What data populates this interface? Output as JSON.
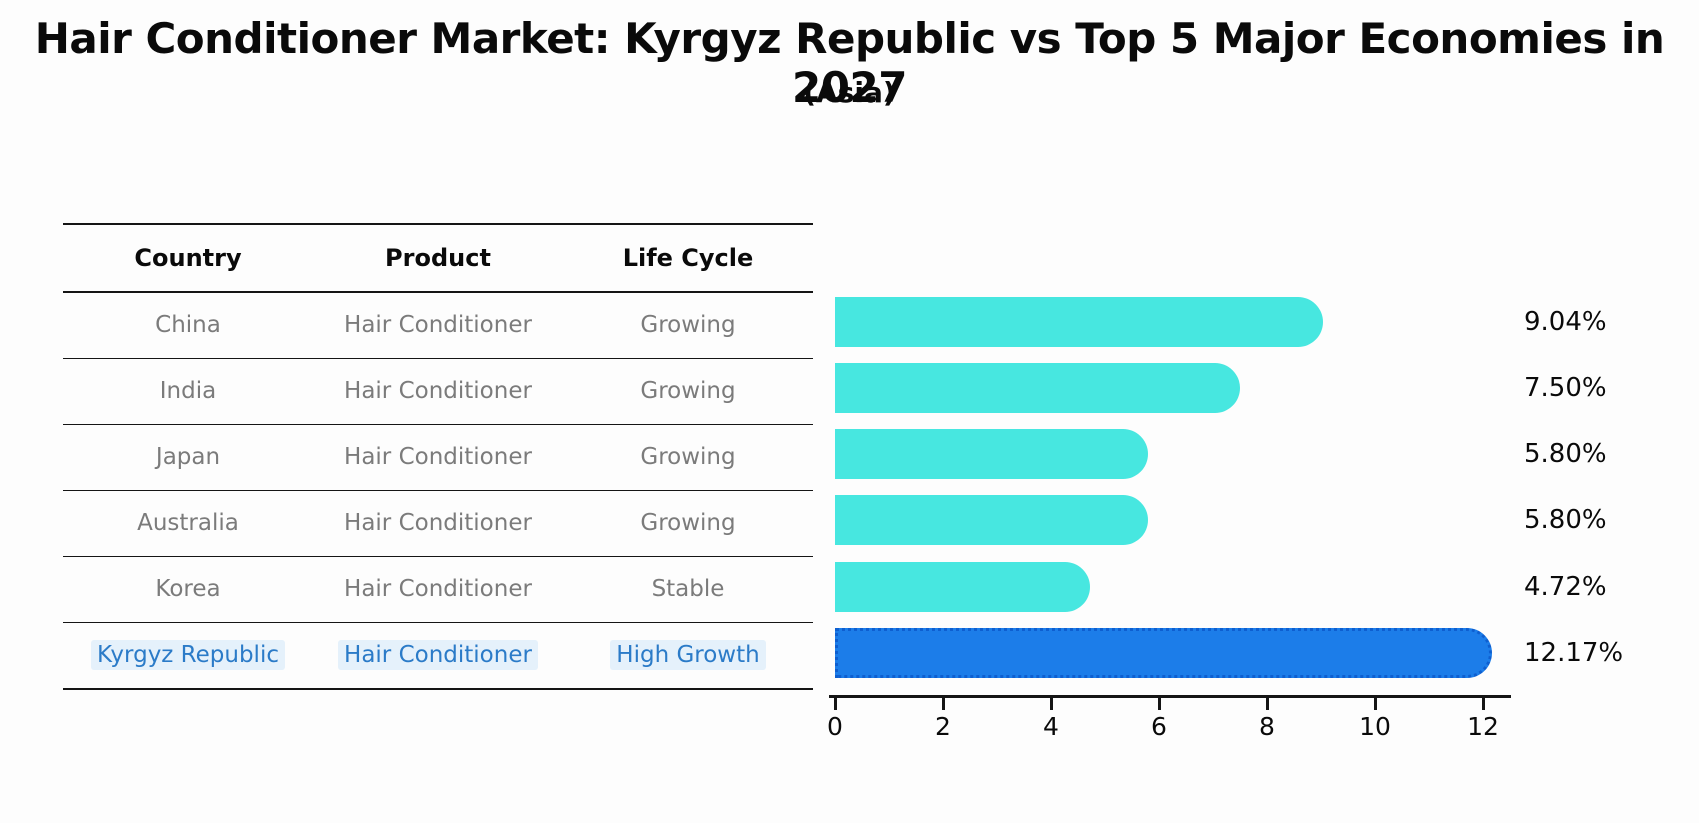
{
  "title": "Hair Conditioner Market: Kyrgyz Republic vs Top 5 Major Economies in 2027",
  "subtitle": "(Asia)",
  "table": {
    "headers": [
      "Country",
      "Product",
      "Life Cycle"
    ],
    "rows": [
      {
        "country": "China",
        "product": "Hair Conditioner",
        "life_cycle": "Growing"
      },
      {
        "country": "India",
        "product": "Hair Conditioner",
        "life_cycle": "Growing"
      },
      {
        "country": "Japan",
        "product": "Hair Conditioner",
        "life_cycle": "Growing"
      },
      {
        "country": "Australia",
        "product": "Hair Conditioner",
        "life_cycle": "Growing"
      },
      {
        "country": "Korea",
        "product": "Hair Conditioner",
        "life_cycle": "Stable"
      },
      {
        "country": "Kyrgyz Republic",
        "product": "Hair Conditioner",
        "life_cycle": "High Growth"
      }
    ],
    "highlight_row_index": 5
  },
  "chart_data": {
    "type": "bar",
    "orientation": "horizontal",
    "title": "Hair Conditioner Market: Kyrgyz Republic vs Top 5 Major Economies in 2027 (Asia)",
    "categories": [
      "China",
      "India",
      "Japan",
      "Australia",
      "Korea",
      "Kyrgyz Republic"
    ],
    "values": [
      9.04,
      7.5,
      5.8,
      5.8,
      4.72,
      12.17
    ],
    "value_labels": [
      "9.04%",
      "7.50%",
      "5.80%",
      "5.80%",
      "4.72%",
      "12.17%"
    ],
    "unit": "%",
    "x_ticks": [
      0,
      2,
      4,
      6,
      8,
      10,
      12
    ],
    "xlim": [
      0,
      12.6
    ],
    "grid": "off",
    "legend": "none",
    "bar_color": "#47e7e0",
    "highlight_color": "#1c7de9",
    "highlight_border_color": "#0e5fd0",
    "highlight_index": 5
  },
  "colors": {
    "background": "#fdfdfd",
    "table_text": "#7b7b7b",
    "header_text": "#0a0a0a",
    "highlight_text": "#2b7bc8",
    "line": "#151515"
  }
}
